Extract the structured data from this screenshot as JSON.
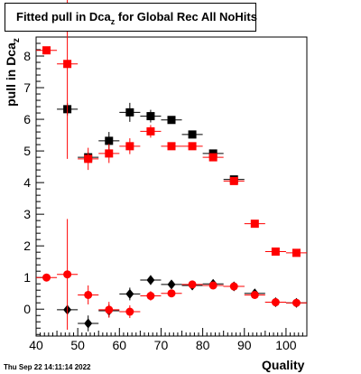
{
  "title": {
    "main": "Fitted pull in Dca",
    "sub": "z",
    "rest": " for Global Rec All NoHits"
  },
  "ylabel": {
    "main": "pull in Dca",
    "sub": "z"
  },
  "xlabel": "Quality",
  "datestamp": "Thu Sep 22 14:11:14 2022",
  "chart_data": {
    "type": "scatter",
    "xlim": [
      40,
      105
    ],
    "ylim": [
      -0.85,
      8.6
    ],
    "xticks": [
      40,
      50,
      60,
      70,
      80,
      90,
      100
    ],
    "yticks": [
      0,
      1,
      2,
      3,
      4,
      5,
      6,
      7,
      8
    ],
    "grid": false,
    "series": [
      {
        "marker": "square",
        "color": "#000000",
        "points": [
          {
            "x": 47.5,
            "y": 6.32,
            "xerr": 2.5,
            "yerr": 0.2
          },
          {
            "x": 52.5,
            "y": 4.8,
            "xerr": 2.5,
            "yerr": 0.15
          },
          {
            "x": 57.5,
            "y": 5.32,
            "xerr": 2.5,
            "yerr": 0.28
          },
          {
            "x": 62.5,
            "y": 6.22,
            "xerr": 2.5,
            "yerr": 0.3
          },
          {
            "x": 67.5,
            "y": 6.1,
            "xerr": 2.5,
            "yerr": 0.2
          },
          {
            "x": 72.5,
            "y": 5.98,
            "xerr": 2.5,
            "yerr": 0.1
          },
          {
            "x": 77.5,
            "y": 5.52,
            "xerr": 2.5,
            "yerr": 0.08
          },
          {
            "x": 82.5,
            "y": 4.92,
            "xerr": 2.5,
            "yerr": 0.06
          },
          {
            "x": 87.5,
            "y": 4.1,
            "xerr": 2.5,
            "yerr": 0.05
          }
        ]
      },
      {
        "marker": "square",
        "color": "#ff0000",
        "points": [
          {
            "x": 42.5,
            "y": 8.18,
            "xerr": 2.5,
            "yerr": 0.05
          },
          {
            "x": 47.5,
            "y": 7.75,
            "xerr": 2.5,
            "yerr": 3.0
          },
          {
            "x": 52.5,
            "y": 4.75,
            "xerr": 2.5,
            "yerr": 0.35
          },
          {
            "x": 57.5,
            "y": 4.92,
            "xerr": 2.5,
            "yerr": 0.3
          },
          {
            "x": 62.5,
            "y": 5.15,
            "xerr": 2.5,
            "yerr": 0.25
          },
          {
            "x": 67.5,
            "y": 5.62,
            "xerr": 2.5,
            "yerr": 0.2
          },
          {
            "x": 72.5,
            "y": 5.15,
            "xerr": 2.5,
            "yerr": 0.08
          },
          {
            "x": 77.5,
            "y": 5.15,
            "xerr": 2.5,
            "yerr": 0.08
          },
          {
            "x": 82.5,
            "y": 4.8,
            "xerr": 2.5,
            "yerr": 0.06
          },
          {
            "x": 87.5,
            "y": 4.05,
            "xerr": 2.5,
            "yerr": 0.05
          },
          {
            "x": 92.5,
            "y": 2.7,
            "xerr": 2.5,
            "yerr": 0.04
          },
          {
            "x": 97.5,
            "y": 1.82,
            "xerr": 2.5,
            "yerr": 0.04
          },
          {
            "x": 102.5,
            "y": 1.78,
            "xerr": 2.5,
            "yerr": 0.04
          }
        ]
      },
      {
        "marker": "diamond",
        "color": "#000000",
        "points": [
          {
            "x": 47.5,
            "y": -0.02,
            "xerr": 2.5,
            "yerr": 0.15
          },
          {
            "x": 52.5,
            "y": -0.45,
            "xerr": 2.5,
            "yerr": 0.25
          },
          {
            "x": 57.5,
            "y": -0.05,
            "xerr": 2.5,
            "yerr": 0.2
          },
          {
            "x": 62.5,
            "y": 0.48,
            "xerr": 2.5,
            "yerr": 0.2
          },
          {
            "x": 67.5,
            "y": 0.92,
            "xerr": 2.5,
            "yerr": 0.15
          },
          {
            "x": 72.5,
            "y": 0.78,
            "xerr": 2.5,
            "yerr": 0.1
          },
          {
            "x": 77.5,
            "y": 0.75,
            "xerr": 2.5,
            "yerr": 0.08
          },
          {
            "x": 82.5,
            "y": 0.8,
            "xerr": 2.5,
            "yerr": 0.06
          },
          {
            "x": 87.5,
            "y": 0.72,
            "xerr": 2.5,
            "yerr": 0.05
          },
          {
            "x": 92.5,
            "y": 0.5,
            "xerr": 2.5,
            "yerr": 0.04
          },
          {
            "x": 97.5,
            "y": 0.22,
            "xerr": 2.5,
            "yerr": 0.04
          },
          {
            "x": 102.5,
            "y": 0.2,
            "xerr": 2.5,
            "yerr": 0.04
          }
        ]
      },
      {
        "marker": "circle",
        "color": "#ff0000",
        "points": [
          {
            "x": 42.5,
            "y": 1.0,
            "xerr": 2.5,
            "yerr": 0.05
          },
          {
            "x": 47.5,
            "y": 1.1,
            "xerr": 2.5,
            "yerr": 1.75
          },
          {
            "x": 52.5,
            "y": 0.45,
            "xerr": 2.5,
            "yerr": 0.3
          },
          {
            "x": 57.5,
            "y": -0.02,
            "xerr": 2.5,
            "yerr": 0.25
          },
          {
            "x": 62.5,
            "y": -0.08,
            "xerr": 2.5,
            "yerr": 0.2
          },
          {
            "x": 67.5,
            "y": 0.42,
            "xerr": 2.5,
            "yerr": 0.15
          },
          {
            "x": 72.5,
            "y": 0.5,
            "xerr": 2.5,
            "yerr": 0.1
          },
          {
            "x": 77.5,
            "y": 0.78,
            "xerr": 2.5,
            "yerr": 0.08
          },
          {
            "x": 82.5,
            "y": 0.75,
            "xerr": 2.5,
            "yerr": 0.06
          },
          {
            "x": 87.5,
            "y": 0.72,
            "xerr": 2.5,
            "yerr": 0.05
          },
          {
            "x": 92.5,
            "y": 0.45,
            "xerr": 2.5,
            "yerr": 0.04
          },
          {
            "x": 97.5,
            "y": 0.22,
            "xerr": 2.5,
            "yerr": 0.04
          },
          {
            "x": 102.5,
            "y": 0.2,
            "xerr": 2.5,
            "yerr": 0.04
          }
        ]
      }
    ]
  }
}
